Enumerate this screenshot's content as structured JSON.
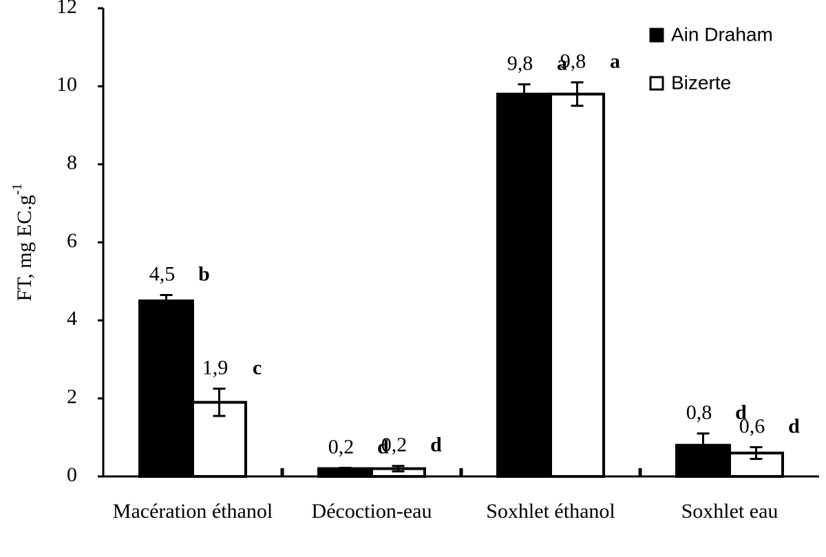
{
  "chart_data": {
    "type": "bar",
    "ylabel": "FT, mg EC.g",
    "ylabel_superscript": "-1",
    "categories": [
      "Macération éthanol",
      "Décoction-eau",
      "Soxhlet éthanol",
      "Soxhlet eau"
    ],
    "series": [
      {
        "name": "Ain Draham",
        "color": "#000000",
        "values": [
          4.5,
          0.2,
          9.8,
          0.8
        ],
        "value_labels": [
          "4,5",
          "0,2",
          "9,8",
          "0,8"
        ],
        "errors": [
          0.15,
          0.02,
          0.25,
          0.3
        ],
        "letters": [
          "b",
          "d",
          "a",
          "d"
        ]
      },
      {
        "name": "Bizerte",
        "color": "#ffffff",
        "values": [
          1.9,
          0.2,
          9.8,
          0.6
        ],
        "value_labels": [
          "1,9",
          "0,2",
          "9,8",
          "0,6"
        ],
        "errors": [
          0.35,
          0.07,
          0.3,
          0.15
        ],
        "letters": [
          "c",
          "d",
          "a",
          "d"
        ]
      }
    ],
    "ylim": [
      0,
      12
    ],
    "yticks": [
      0,
      2,
      4,
      6,
      8,
      10,
      12
    ],
    "legend": "upper right"
  }
}
